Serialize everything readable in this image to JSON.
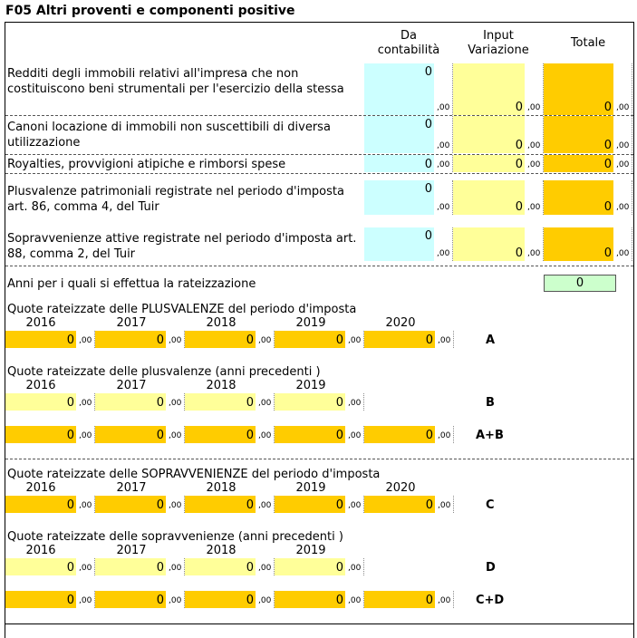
{
  "title": "F05 Altri proventi e componenti positive",
  "headers": {
    "col1": [
      "Da",
      "contabilità"
    ],
    "col2": [
      "Input",
      "Variazione"
    ],
    "col3": "Totale"
  },
  "decimals": ",00",
  "rows": [
    {
      "label": "Redditi degli immobili relativi all'impresa che non costituiscono beni strumentali per l'esercizio della stessa",
      "da": "0",
      "input": "0",
      "totale": "0"
    },
    {
      "label": "Canoni locazione di immobili non suscettibili di diversa utilizzazione",
      "da": "0",
      "input": "0",
      "totale": "0"
    },
    {
      "label": "Royalties, provvigioni atipiche e rimborsi spese",
      "da": "0",
      "input": "0",
      "totale": "0"
    },
    {
      "label": "Plusvalenze patrimoniali registrate nel periodo d'imposta art. 86, comma 4, del Tuir",
      "da": "0",
      "input": "0",
      "totale": "0"
    },
    {
      "label": "Sopravvenienze attive registrate nel periodo d'imposta art. 88, comma 2, del Tuir",
      "da": "0",
      "input": "0",
      "totale": "0"
    }
  ],
  "anni": {
    "label": "Anni per i quali si effettua la rateizzazione",
    "value": "0"
  },
  "sections": {
    "plus_curr": {
      "title": "Quote rateizzate delle PLUSVALENZE del periodo d'imposta",
      "years": [
        "2016",
        "2017",
        "2018",
        "2019",
        "2020"
      ],
      "values": [
        "0",
        "0",
        "0",
        "0",
        "0"
      ],
      "letter": "A"
    },
    "plus_prev": {
      "title": "Quote rateizzate delle plusvalenze  (anni precedenti )",
      "years": [
        "2016",
        "2017",
        "2018",
        "2019"
      ],
      "values": [
        "0",
        "0",
        "0",
        "0"
      ],
      "letter": "B"
    },
    "plus_sum": {
      "values": [
        "0",
        "0",
        "0",
        "0",
        "0"
      ],
      "letter": "A+B"
    },
    "sopr_curr": {
      "title": "Quote rateizzate delle SOPRAVVENIENZE del periodo d'imposta",
      "years": [
        "2016",
        "2017",
        "2018",
        "2019",
        "2020"
      ],
      "values": [
        "0",
        "0",
        "0",
        "0",
        "0"
      ],
      "letter": "C"
    },
    "sopr_prev": {
      "title": "Quote rateizzate delle sopravvenienze  (anni precedenti )",
      "years": [
        "2016",
        "2017",
        "2018",
        "2019"
      ],
      "values": [
        "0",
        "0",
        "0",
        "0"
      ],
      "letter": "D"
    },
    "sopr_sum": {
      "values": [
        "0",
        "0",
        "0",
        "0",
        "0"
      ],
      "letter": "C+D"
    }
  },
  "colors": {
    "blue": "#ccffff",
    "yellow": "#ffff99",
    "orange": "#ffcc00",
    "green": "#ccffcc"
  }
}
